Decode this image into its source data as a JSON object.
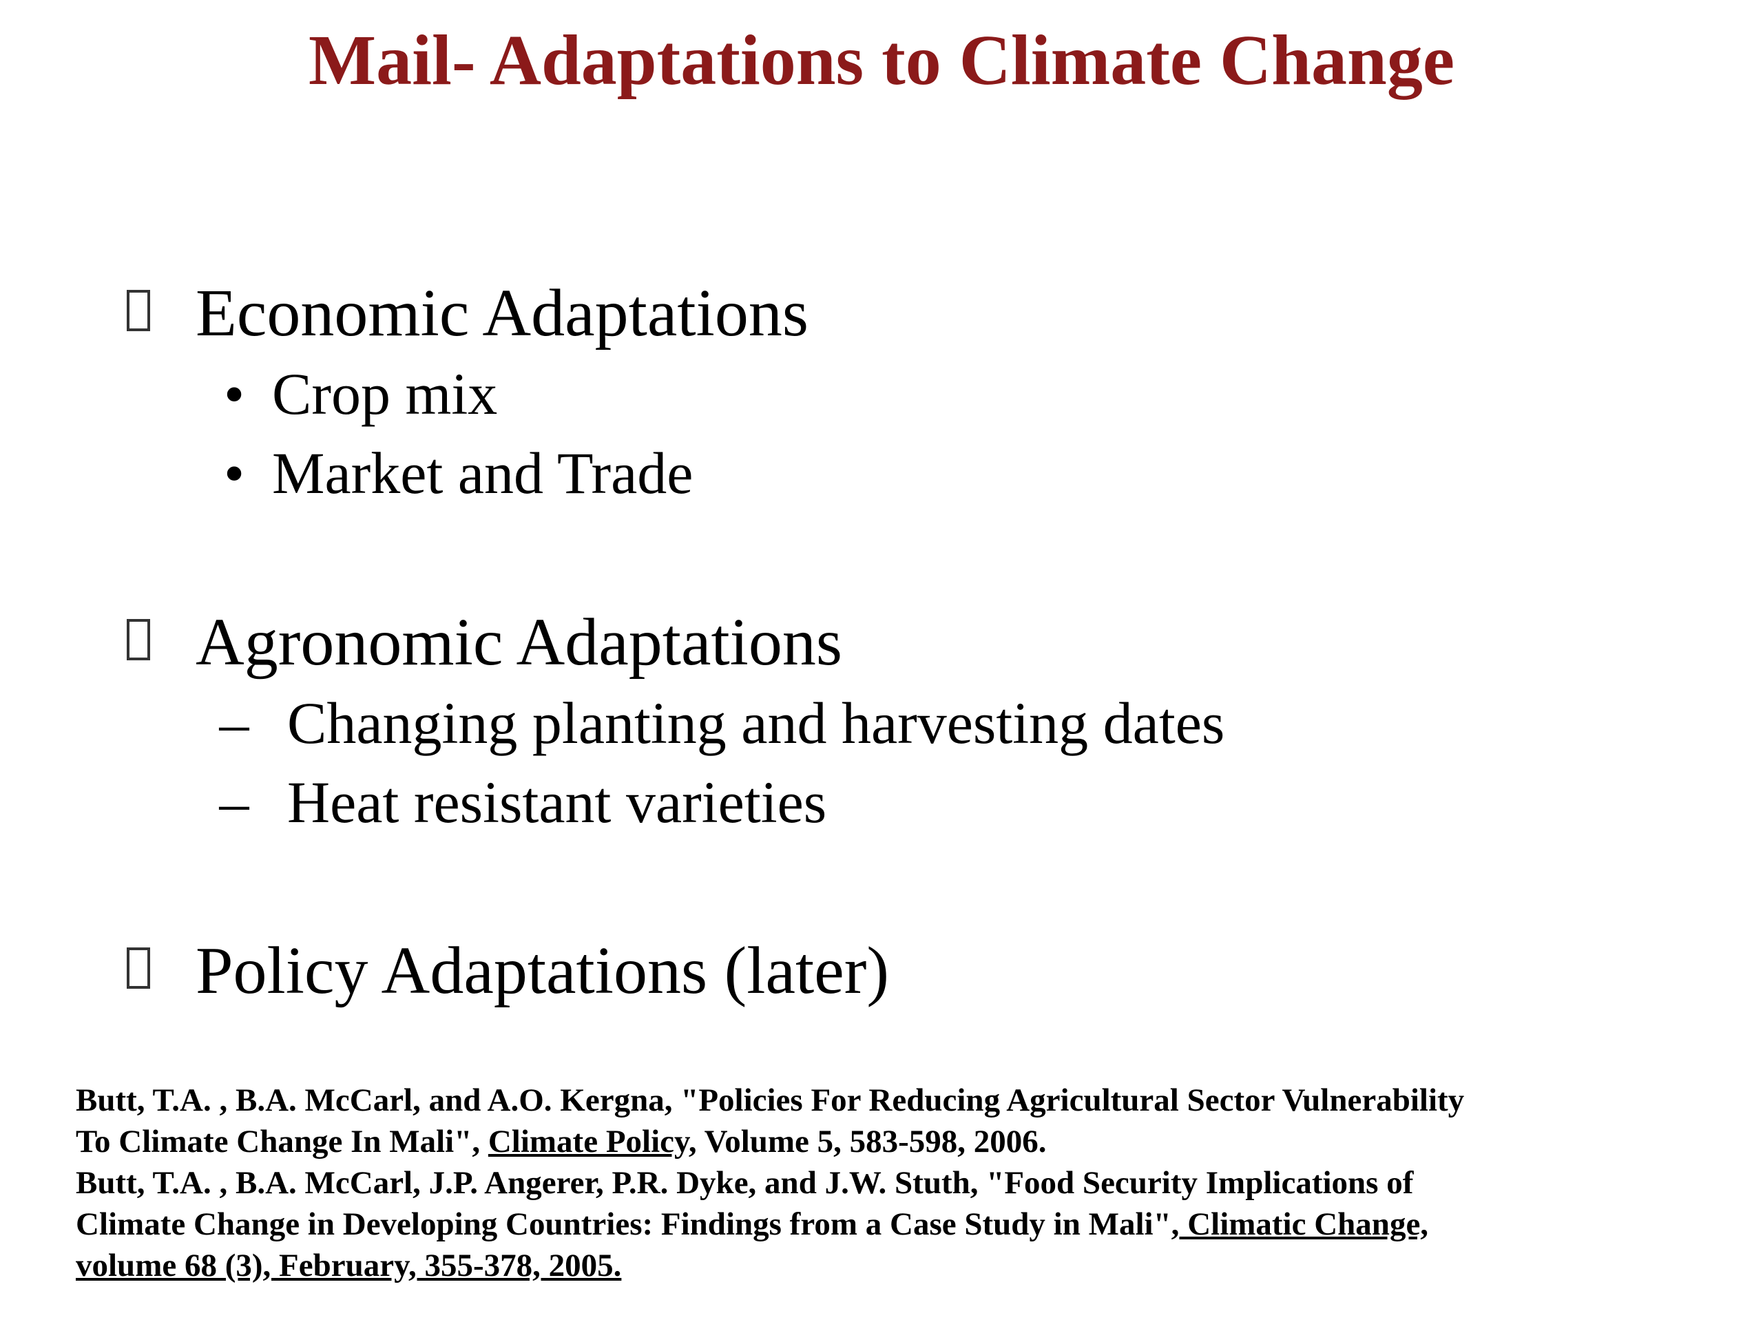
{
  "title": "Mail- Adaptations to Climate Change",
  "sections": [
    {
      "heading": "Economic Adaptations",
      "marker": "•",
      "items": [
        "Crop mix",
        "Market and Trade"
      ]
    },
    {
      "heading": "Agronomic Adaptations",
      "marker": "–",
      "items": [
        "Changing planting and harvesting dates",
        "Heat resistant varieties"
      ]
    },
    {
      "heading": "Policy Adaptations (later)",
      "items": []
    }
  ],
  "references": {
    "ref1_line1": "Butt, T.A. , B.A. McCarl, and A.O. Kergna, \"Policies For Reducing Agricultural Sector Vulnerability",
    "ref1_line2_pre": "To Climate Change In Mali\", ",
    "ref1_journal": "Climate Policy,",
    "ref1_line2_post": " Volume 5, 583-598, 2006.",
    "ref2_line1": "Butt, T.A. , B.A. McCarl, J.P. Angerer, P.R. Dyke, and J.W. Stuth, \"Food Security Implications of",
    "ref2_line2_pre": "Climate Change in Developing Countries: Findings from a Case Study in Mali\",",
    "ref2_journal": " Climatic Change,",
    "ref2_line3": "volume 68 (3), February, 355-378, 2005."
  }
}
